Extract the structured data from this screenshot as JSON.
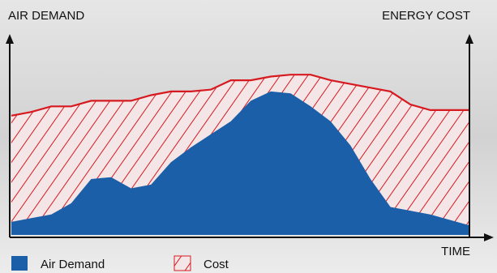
{
  "chart_data": {
    "type": "area",
    "y_label": "AIR DEMAND",
    "y2_label": "ENERGY COST",
    "x_label": "TIME",
    "categories": [
      null,
      null,
      null,
      null,
      null,
      null,
      null,
      null,
      null,
      null,
      null,
      null,
      null,
      null,
      null,
      null,
      null,
      null,
      null,
      null,
      null,
      null,
      null,
      null
    ],
    "ylim": [
      0,
      100
    ],
    "series": [
      {
        "name": "Cost",
        "color": "#d71920",
        "hatched": true,
        "values": [
          64,
          66,
          69,
          69,
          72,
          72,
          72,
          75,
          77,
          77,
          78,
          83,
          83,
          85,
          86,
          86,
          83,
          81,
          79,
          77,
          70,
          67,
          67,
          67
        ]
      },
      {
        "name": "Air Demand",
        "color": "#1a5fa8",
        "hatched": false,
        "values": [
          7,
          9,
          11,
          17,
          30,
          31,
          25,
          27,
          39,
          47,
          54,
          61,
          72,
          77,
          76,
          69,
          61,
          48,
          30,
          15,
          13,
          11,
          8,
          5
        ]
      }
    ]
  }
}
